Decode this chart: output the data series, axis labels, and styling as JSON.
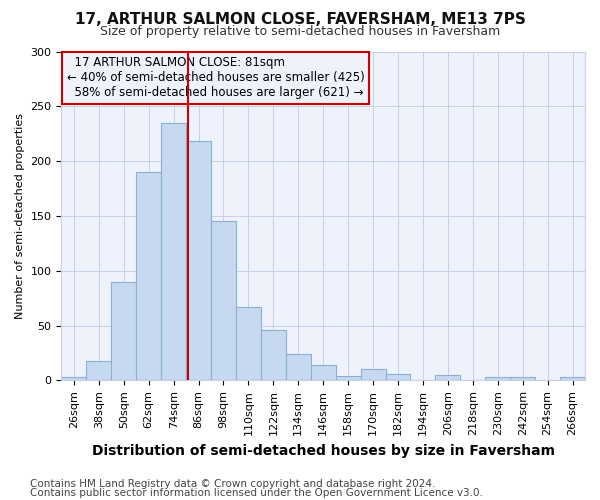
{
  "title": "17, ARTHUR SALMON CLOSE, FAVERSHAM, ME13 7PS",
  "subtitle": "Size of property relative to semi-detached houses in Faversham",
  "xlabel": "Distribution of semi-detached houses by size in Faversham",
  "ylabel": "Number of semi-detached properties",
  "categories": [
    "26sqm",
    "38sqm",
    "50sqm",
    "62sqm",
    "74sqm",
    "86sqm",
    "98sqm",
    "110sqm",
    "122sqm",
    "134sqm",
    "146sqm",
    "158sqm",
    "170sqm",
    "182sqm",
    "194sqm",
    "206sqm",
    "218sqm",
    "230sqm",
    "242sqm",
    "254sqm",
    "266sqm"
  ],
  "values": [
    3,
    18,
    90,
    190,
    235,
    218,
    145,
    67,
    46,
    24,
    14,
    4,
    10,
    6,
    0,
    5,
    0,
    3,
    3,
    0,
    3
  ],
  "bar_color": "#c6d9f0",
  "bar_edge_color": "#8ab0d4",
  "vline_color": "#cc0000",
  "annotation_box_color": "#cc0000",
  "property_line_label": "17 ARTHUR SALMON CLOSE: 81sqm",
  "smaller_pct": "40%",
  "smaller_count": 425,
  "larger_pct": "58%",
  "larger_count": 621,
  "ylim": [
    0,
    300
  ],
  "yticks": [
    0,
    50,
    100,
    150,
    200,
    250,
    300
  ],
  "bg_color": "#ffffff",
  "plot_bg_color": "#eef2fb",
  "grid_color": "#c8cfe8",
  "title_fontsize": 11,
  "subtitle_fontsize": 9,
  "xlabel_fontsize": 10,
  "ylabel_fontsize": 8,
  "tick_fontsize": 8,
  "annot_fontsize": 8.5,
  "footer_fontsize": 7.5,
  "footer_line1": "Contains HM Land Registry data © Crown copyright and database right 2024.",
  "footer_line2": "Contains public sector information licensed under the Open Government Licence v3.0."
}
